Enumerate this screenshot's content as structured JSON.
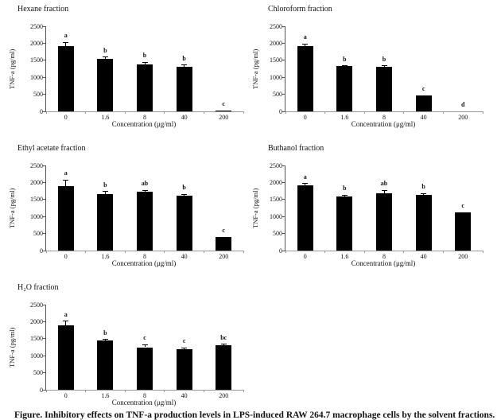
{
  "chart_data": {
    "type": "bar",
    "categories": [
      "0",
      "1.6",
      "8",
      "40",
      "200"
    ],
    "xlabel": "Concentration (μg/ml)",
    "ylabel": "TNF-a (pg/ml)",
    "ylim": [
      0,
      2500
    ],
    "yticks": [
      0,
      500,
      1000,
      1500,
      2000,
      2500
    ],
    "bar_color": "#000000",
    "grid": false,
    "legend": false,
    "charts": [
      {
        "title": "Hexane fraction",
        "values": [
          1920,
          1550,
          1380,
          1300,
          20
        ],
        "errors": [
          110,
          40,
          60,
          60,
          0
        ],
        "sig_letters": [
          "a",
          "b",
          "b",
          "b",
          "c"
        ]
      },
      {
        "title": "Chloroform fraction",
        "values": [
          1920,
          1330,
          1310,
          470,
          0
        ],
        "errors": [
          55,
          10,
          25,
          0,
          0
        ],
        "sig_letters": [
          "a",
          "b",
          "b",
          "c",
          "d"
        ]
      },
      {
        "title": "Ethyl acetate fraction",
        "values": [
          1900,
          1660,
          1740,
          1620,
          390
        ],
        "errors": [
          170,
          80,
          35,
          35,
          0
        ],
        "sig_letters": [
          "a",
          "b",
          "ab",
          "b",
          "c"
        ]
      },
      {
        "title": "Buthanol fraction",
        "values": [
          1910,
          1600,
          1690,
          1630,
          1110
        ],
        "errors": [
          60,
          35,
          80,
          50,
          0
        ],
        "sig_letters": [
          "a",
          "b",
          "ab",
          "b",
          "c"
        ]
      },
      {
        "title": "H₂O fraction",
        "values": [
          1900,
          1450,
          1250,
          1200,
          1320
        ],
        "errors": [
          110,
          25,
          80,
          35,
          20
        ],
        "sig_letters": [
          "a",
          "b",
          "c",
          "c",
          "bc"
        ]
      }
    ]
  },
  "caption": {
    "text": "Figure. Inhibitory effects on TNF-a production levels in LPS-induced RAW 264.7 macrophage cells by the solvent fractions."
  }
}
